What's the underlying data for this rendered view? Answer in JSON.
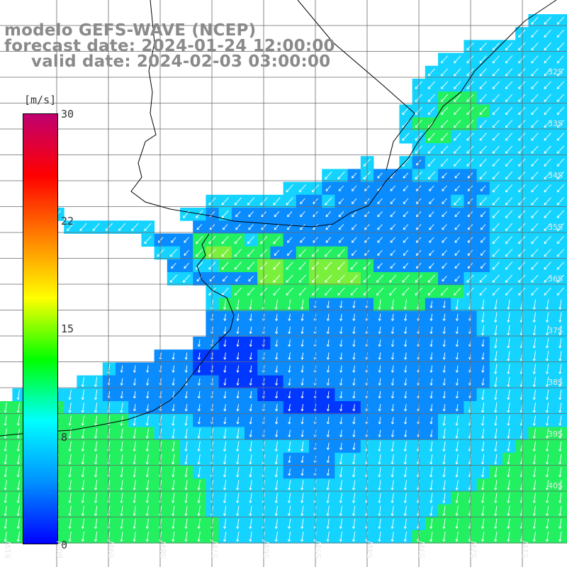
{
  "title": {
    "line1": "modelo GEFS-WAVE (NCEP)",
    "line2": "forecast date: 2024-01-24 12:00:00",
    "line3": "valid date: 2024-02-03 03:00:00"
  },
  "colorbar": {
    "unit": "[m/s]",
    "ticks": [
      "30",
      "22",
      "15",
      "8",
      "0"
    ],
    "min": 0,
    "max": 30,
    "colors": [
      "#0000ff",
      "#0090ff",
      "#00ffff",
      "#00ff00",
      "#ffff00",
      "#ff8000",
      "#ff0000",
      "#c00070"
    ]
  },
  "lat_labels": [
    "32S",
    "33S",
    "34S",
    "35S",
    "36S",
    "37S",
    "38S",
    "39S",
    "40S"
  ],
  "lon_labels": [
    "61W",
    "60W",
    "59W",
    "58W",
    "57W",
    "56W",
    "55W",
    "54W",
    "53W",
    "52W",
    "51W"
  ],
  "map_colors": {
    "land": "#ffffff",
    "coastline": "#000000",
    "grid": "#555555",
    "arrows": "#ffffff"
  },
  "field": {
    "description_grid": "wind speed m/s on regular grid; blank = land",
    "rows": [
      "...............................................ccc",
      "..............................................cccc",
      "..........................................cccccccc",
      "........................................cccccccccc",
      ".......................................ccccccccccc",
      "......................................cccccccccccc",
      ".....................................ccgggccccccc",
      "....................................cccggggcccccc",
      "....................................cgggggccccccc",
      ".....................................ccggccccccccc",
      "......................................cccccccccccc",
      "..................................c..cbccccccccccc",
      "...............................ccbcbbbccbbbccccccc",
      "............................cccbbbbbbbbbbbbbcccccc",
      "......................cccccccbbcbbbbbbbbbcbccccccc",
      "...........c.........ccbcbbbbbbbbbbbbbbbbbbbbcccccc",
      "...........ccccccc...bbbbbbbbbbbbbbbbbbbbbbbcccccc",
      "..................cbbbggggcggbbbbbbbbbbbbbbbbcccccc",
      "..................ccbgGGgggbbggggbbbbbbbbbbbcccccc",
      ".................bbccgggGGggGGGggbbbbbbbbbcccccc",
      ".................ccbbbbbGGggGGGGggggggbbcccccccc",
      "...................ccggggggggggggggggggcccccccc",
      "....................cgggggggbbbbbggggbbccccccccc",
      "....................bbbbbbbbbbbbbbbbbbbbbccccccc",
      "...................bbbbbbbbbbbbbbbbbbbbbccccccc",
      "..................bbBBBBbbbbbbbbbbbbbbbbbcccccc",
      "................bbbBBBBBbbbbbbbbbbbbbbbbbbcccccc",
      ".............cbbbbbbBBBBBbbbbbbbbbbbbbbbbbbcccccc",
      "...........ccbbbbbbbbbBBBBBbbbbbbbbbbbbbbbbcccccc",
      "......cccccccbbbbbbbbbbbbBBBBBBbbbbbbbbbbbccccccc",
      "gggggggggcccccbbbbbbbbbbbbBBBBBBbbbbbbbbcccccccc",
      "ggggggggggggcccccbbbbbbbbbbbbbbbbbbbcccccccccc",
      "ggggggggggggggcccccccbbbbbbbbbbbbbbbcccccccggg",
      "gggggggggggggggccccccccccbbbbccccccccccccgggg",
      "ggggggggggggggggccccccccbbbbcccccccccccccggggg",
      "gggggggggggggggggcccccccbbbbccccccccccccgggggg",
      "ggggggggggggggggggcccccccccccccccccccccggggggg",
      "ggggggggggggggggggcccccccccccccccccccggggggggg",
      "ggggggggggggggggggccccccccccccccccccgggggggggg",
      "gggggggggggggggggggccccccccccccccccggggggggggg",
      "gggggggggggggggggggcccccccccccccccgggggggggggg"
    ]
  }
}
